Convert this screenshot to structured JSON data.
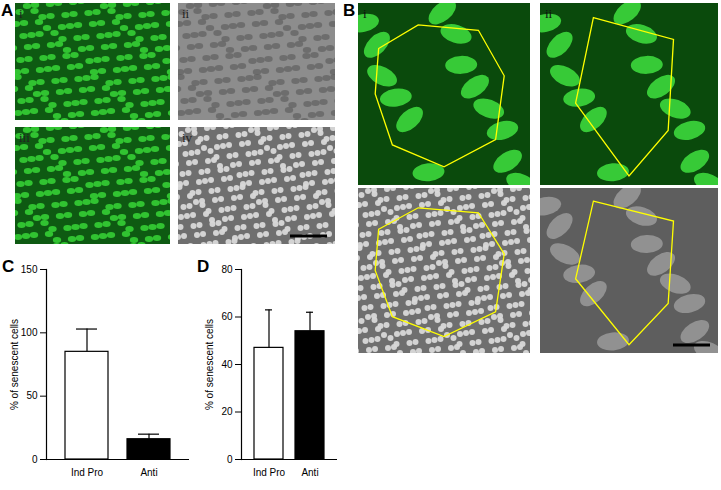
{
  "panels": [
    {
      "label": "A",
      "images": [
        "i",
        "ii",
        "iii",
        "iv"
      ]
    },
    {
      "label": "B",
      "images": [
        "i",
        "ii"
      ]
    }
  ],
  "chart_data": [
    {
      "type": "bar",
      "title": "C",
      "y_label": "% of senescent cells",
      "categories": [
        "Ind Pro",
        "Anti"
      ],
      "values": [
        85,
        16
      ],
      "errors": [
        18,
        4
      ],
      "colors": [
        "#ffffff",
        "#000000"
      ],
      "ylim": [
        0,
        150
      ],
      "yticks": [
        0,
        50,
        100,
        150
      ]
    },
    {
      "type": "bar",
      "title": "D",
      "y_label": "% of senescent cells",
      "categories": [
        "Ind Pro",
        "Anti"
      ],
      "values": [
        47,
        54
      ],
      "errors": [
        16,
        8
      ],
      "colors": [
        "#ffffff",
        "#000000"
      ],
      "ylim": [
        0,
        80
      ],
      "yticks": [
        0,
        20,
        40,
        60,
        80
      ]
    }
  ]
}
